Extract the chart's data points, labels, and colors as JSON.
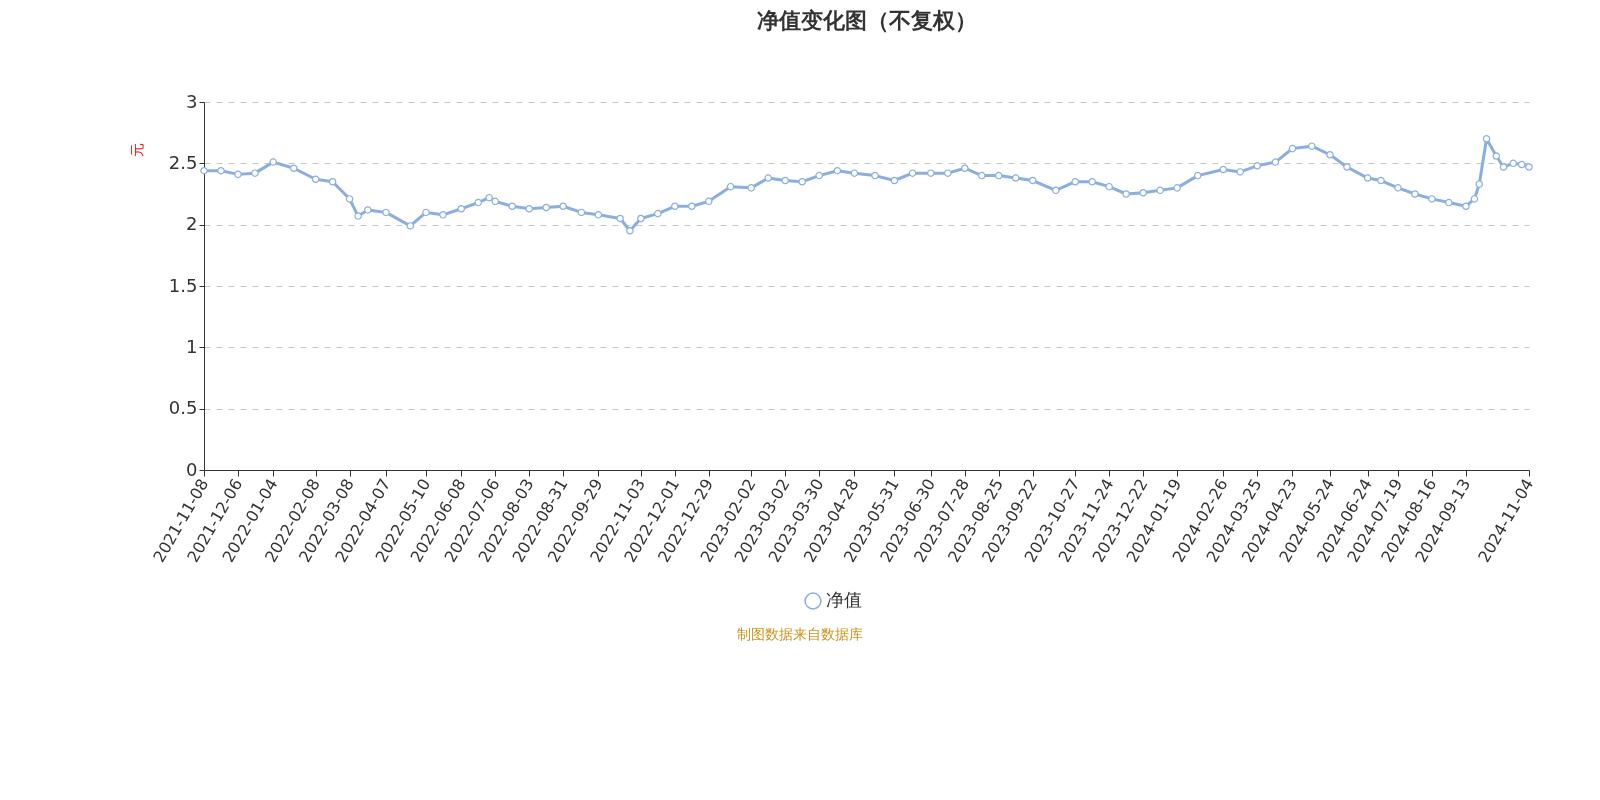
{
  "chart_data": {
    "type": "line",
    "title": "净值变化图（不复权）",
    "ylabel": "元",
    "x": [
      "2021-11-08",
      "2021-11-22",
      "2021-12-06",
      "2021-12-20",
      "2022-01-04",
      "2022-01-21",
      "2022-02-08",
      "2022-02-22",
      "2022-03-08",
      "2022-03-15",
      "2022-03-23",
      "2022-04-07",
      "2022-04-27",
      "2022-05-10",
      "2022-05-24",
      "2022-06-08",
      "2022-06-22",
      "2022-07-01",
      "2022-07-06",
      "2022-07-20",
      "2022-08-03",
      "2022-08-17",
      "2022-08-31",
      "2022-09-15",
      "2022-09-29",
      "2022-10-17",
      "2022-10-25",
      "2022-11-03",
      "2022-11-17",
      "2022-12-01",
      "2022-12-15",
      "2022-12-29",
      "2023-01-16",
      "2023-02-02",
      "2023-02-16",
      "2023-03-02",
      "2023-03-16",
      "2023-03-30",
      "2023-04-14",
      "2023-04-28",
      "2023-05-15",
      "2023-05-31",
      "2023-06-15",
      "2023-06-30",
      "2023-07-14",
      "2023-07-28",
      "2023-08-11",
      "2023-08-25",
      "2023-09-08",
      "2023-09-22",
      "2023-10-11",
      "2023-10-27",
      "2023-11-10",
      "2023-11-24",
      "2023-12-08",
      "2023-12-22",
      "2024-01-05",
      "2024-01-19",
      "2024-02-05",
      "2024-02-26",
      "2024-03-11",
      "2024-03-25",
      "2024-04-09",
      "2024-04-23",
      "2024-05-09",
      "2024-05-24",
      "2024-06-07",
      "2024-06-24",
      "2024-07-05",
      "2024-07-19",
      "2024-08-02",
      "2024-08-16",
      "2024-08-30",
      "2024-09-13",
      "2024-09-20",
      "2024-09-24",
      "2024-09-30",
      "2024-10-08",
      "2024-10-14",
      "2024-10-22",
      "2024-10-29",
      "2024-11-04"
    ],
    "series": [
      {
        "name": "净值",
        "color": "#8aaee0",
        "values": [
          2.44,
          2.44,
          2.41,
          2.42,
          2.51,
          2.46,
          2.37,
          2.35,
          2.21,
          2.07,
          2.12,
          2.1,
          1.99,
          2.1,
          2.08,
          2.13,
          2.18,
          2.22,
          2.19,
          2.15,
          2.13,
          2.14,
          2.15,
          2.1,
          2.08,
          2.05,
          1.95,
          2.05,
          2.09,
          2.15,
          2.15,
          2.19,
          2.31,
          2.3,
          2.38,
          2.36,
          2.35,
          2.4,
          2.44,
          2.42,
          2.4,
          2.36,
          2.42,
          2.42,
          2.42,
          2.46,
          2.4,
          2.4,
          2.38,
          2.36,
          2.28,
          2.35,
          2.35,
          2.31,
          2.25,
          2.26,
          2.28,
          2.3,
          2.4,
          2.45,
          2.43,
          2.48,
          2.51,
          2.62,
          2.64,
          2.57,
          2.47,
          2.38,
          2.36,
          2.3,
          2.25,
          2.21,
          2.18,
          2.15,
          2.21,
          2.33,
          2.7,
          2.56,
          2.47,
          2.5,
          2.49,
          2.47
        ]
      }
    ],
    "xlim": [
      "2021-11-08",
      "2024-11-04"
    ],
    "xticks": [
      "2021-11-08",
      "2021-12-06",
      "2022-01-04",
      "2022-02-08",
      "2022-03-08",
      "2022-04-07",
      "2022-05-10",
      "2022-06-08",
      "2022-07-06",
      "2022-08-03",
      "2022-08-31",
      "2022-09-29",
      "2022-11-03",
      "2022-12-01",
      "2022-12-29",
      "2023-02-02",
      "2023-03-02",
      "2023-03-30",
      "2023-04-28",
      "2023-05-31",
      "2023-06-30",
      "2023-07-28",
      "2023-08-25",
      "2023-09-22",
      "2023-10-27",
      "2023-11-24",
      "2023-12-22",
      "2024-01-19",
      "2024-02-26",
      "2024-03-25",
      "2024-04-23",
      "2024-05-24",
      "2024-06-24",
      "2024-07-19",
      "2024-08-16",
      "2024-09-13",
      "2024-11-04"
    ],
    "ylim": [
      0,
      3
    ],
    "yticks": [
      0,
      0.5,
      1,
      1.5,
      2,
      2.5,
      3
    ],
    "grid": "y",
    "legend": "bottom",
    "marker": "circle",
    "line_style": "solid",
    "annotations": [
      "制图数据来自数据库"
    ]
  }
}
